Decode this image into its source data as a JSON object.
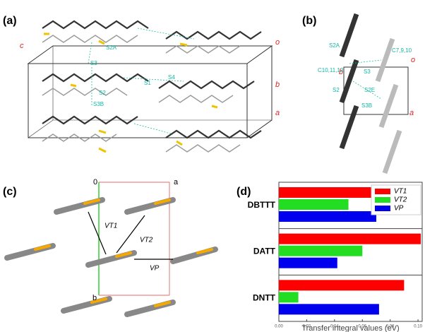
{
  "panels": {
    "a": "(a)",
    "b": "(b)",
    "c": "(c)",
    "d": "(d)"
  },
  "panel_a_labels": [
    "c",
    "o",
    "b",
    "a",
    "S2A",
    "S3",
    "S2",
    "S3B",
    "S1",
    "S4"
  ],
  "panel_b_labels": [
    "b",
    "o",
    "a",
    "S2A",
    "C7,9,10",
    "C10,11,12",
    "S3",
    "S2",
    "S2E",
    "S3B"
  ],
  "panel_c_labels": [
    "0",
    "a",
    "b",
    "VT1",
    "VT2",
    "VP"
  ],
  "chart_data": {
    "type": "hbar",
    "categories": [
      "DBTTT",
      "DATT",
      "DNTT"
    ],
    "series": [
      {
        "name": "VT1",
        "color": "#ff0000",
        "values": [
          0.068,
          0.102,
          0.09
        ]
      },
      {
        "name": "VT2",
        "color": "#22dd22",
        "values": [
          0.05,
          0.06,
          0.014
        ]
      },
      {
        "name": "VP",
        "color": "#0000ee",
        "values": [
          0.07,
          0.042,
          0.072
        ]
      }
    ],
    "xlim": [
      0,
      0.103
    ],
    "xticks": [
      {
        "value": 0,
        "label": "0.00"
      },
      {
        "value": 0.02,
        "label": "0.02"
      },
      {
        "value": 0.04,
        "label": "0.04"
      },
      {
        "value": 0.06,
        "label": "0.06"
      },
      {
        "value": 0.08,
        "label": "0.08"
      },
      {
        "value": 0.1,
        "label": "0.10"
      }
    ],
    "x_label": "Transfer integral values (eV)",
    "legend": "upper right"
  }
}
